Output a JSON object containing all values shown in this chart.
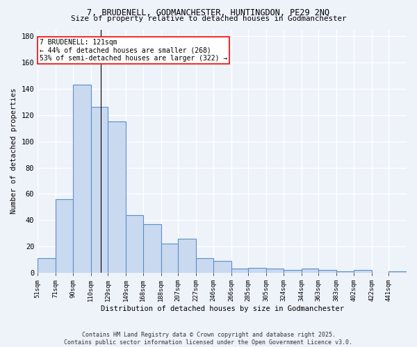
{
  "title1": "7, BRUDENELL, GODMANCHESTER, HUNTINGDON, PE29 2NQ",
  "title2": "Size of property relative to detached houses in Godmanchester",
  "xlabel": "Distribution of detached houses by size in Godmanchester",
  "ylabel": "Number of detached properties",
  "categories": [
    "51sqm",
    "71sqm",
    "90sqm",
    "110sqm",
    "129sqm",
    "149sqm",
    "168sqm",
    "188sqm",
    "207sqm",
    "227sqm",
    "246sqm",
    "266sqm",
    "285sqm",
    "305sqm",
    "324sqm",
    "344sqm",
    "363sqm",
    "383sqm",
    "402sqm",
    "422sqm",
    "441sqm"
  ],
  "hist_values": [
    11,
    56,
    143,
    126,
    115,
    44,
    37,
    22,
    26,
    11,
    9,
    3,
    4,
    3,
    2,
    3,
    2,
    1,
    2,
    0,
    1
  ],
  "bar_color": "#c9d9f0",
  "bar_edge_color": "#5b8fc9",
  "vline_x": 121,
  "annotation_text": "7 BRUDENELL: 121sqm\n← 44% of detached houses are smaller (268)\n53% of semi-detached houses are larger (322) →",
  "annotation_box_color": "white",
  "annotation_box_edge_color": "red",
  "background_color": "#eef2f9",
  "grid_color": "white",
  "footer": "Contains HM Land Registry data © Crown copyright and database right 2025.\nContains public sector information licensed under the Open Government Licence v3.0.",
  "ylim": [
    0,
    185
  ],
  "bin_edges": [
    51,
    71,
    90,
    110,
    129,
    149,
    168,
    188,
    207,
    227,
    246,
    266,
    285,
    305,
    324,
    344,
    363,
    383,
    402,
    422,
    441,
    461
  ]
}
